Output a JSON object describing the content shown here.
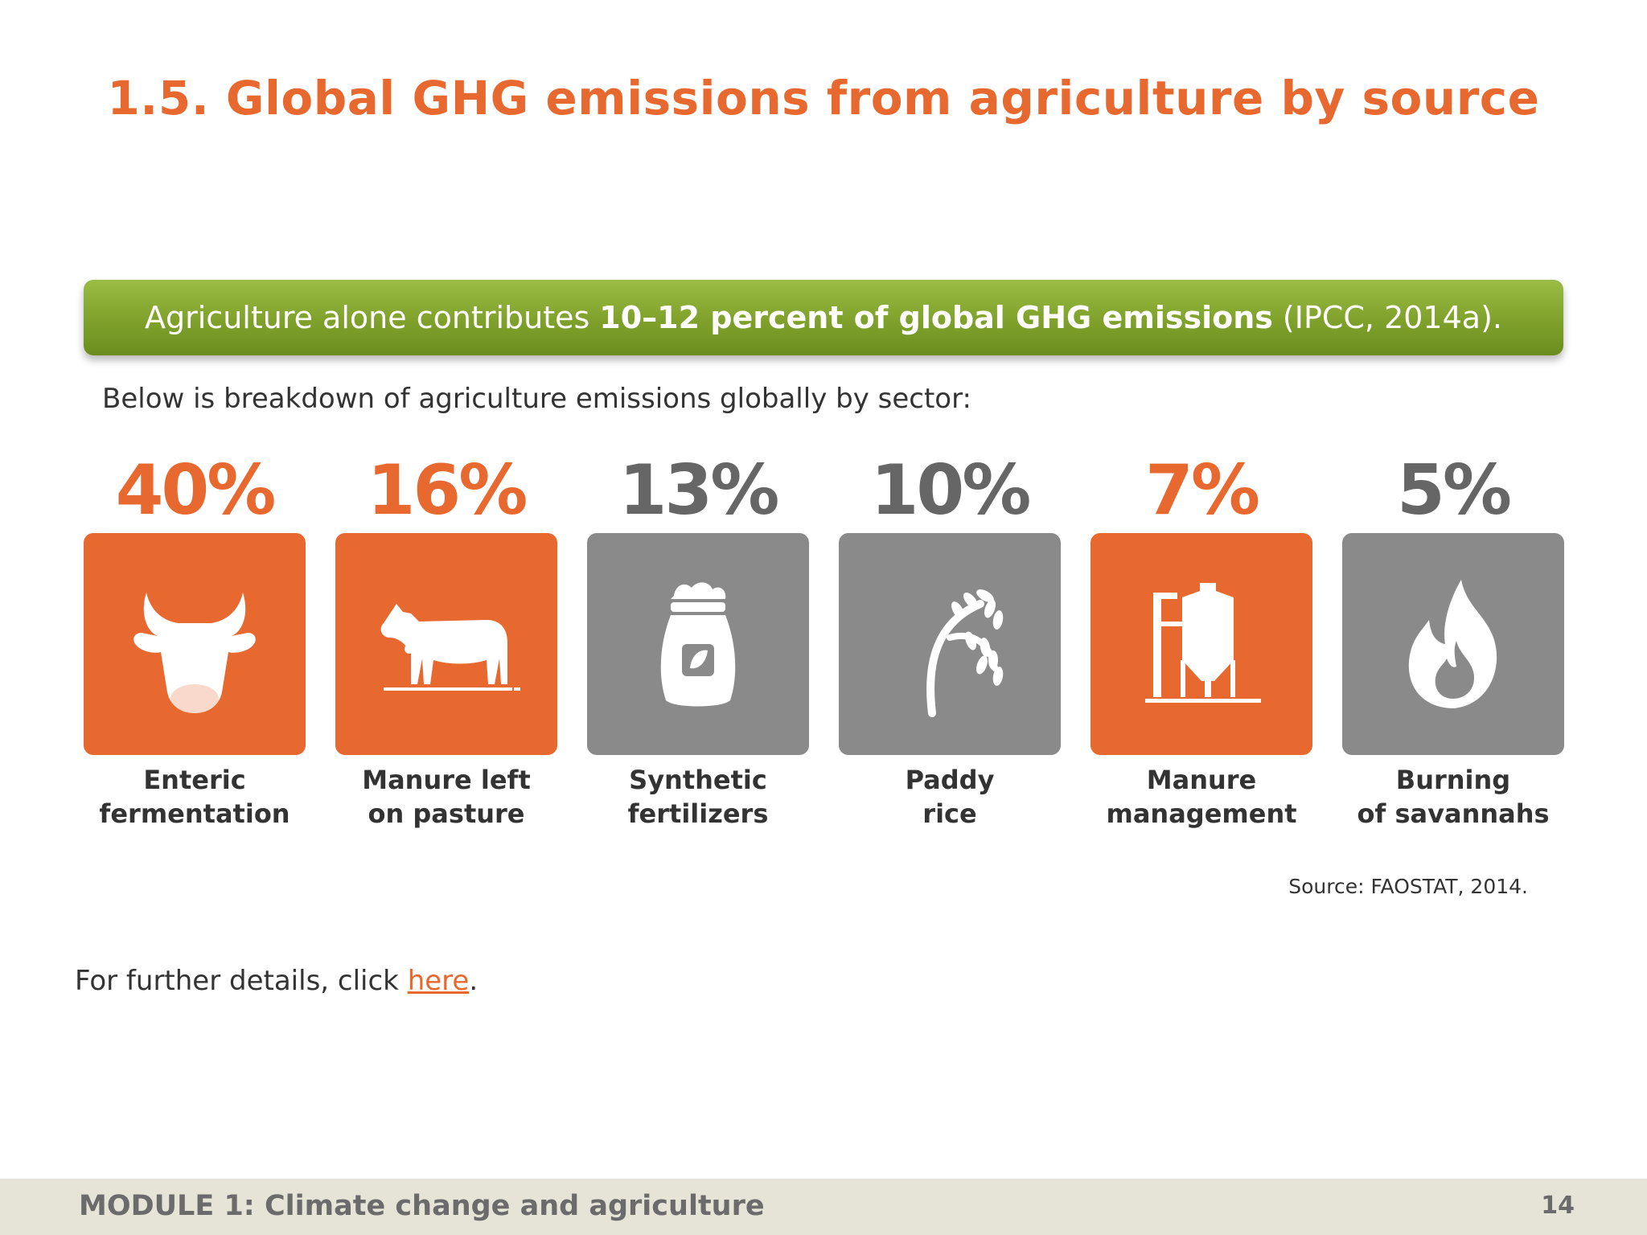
{
  "slide": {
    "title": "1.5. Global GHG emissions from agriculture by source",
    "banner": {
      "prefix": "Agriculture alone contributes",
      "highlight": "10–12 percent of global GHG emissions",
      "suffix": "(IPCC, 2014a)."
    },
    "intro": "Below is breakdown of agriculture emissions globally by sector:",
    "source": "Source: FAOSTAT, 2014.",
    "further": {
      "prefix": "For further details, click",
      "link": "here",
      "suffix": "."
    }
  },
  "colors": {
    "orange": "#e8692f",
    "gray": "#8a8a8a",
    "green": "#7fa12b",
    "text": "#333333"
  },
  "sectors": [
    {
      "percent": "40%",
      "line1": "Enteric",
      "line2": "fermentation",
      "color": "#e8692f",
      "icon": "cow-head-icon"
    },
    {
      "percent": "16%",
      "line1": "Manure left",
      "line2": "on pasture",
      "color": "#e8692f",
      "icon": "cow-icon"
    },
    {
      "percent": "13%",
      "line1": "Synthetic",
      "line2": "fertilizers",
      "color": "#8a8a8a",
      "icon": "fertilizer-bag-icon"
    },
    {
      "percent": "10%",
      "line1": "Paddy",
      "line2": "rice",
      "color": "#8a8a8a",
      "icon": "rice-plant-icon"
    },
    {
      "percent": "7%",
      "line1": "Manure",
      "line2": "management",
      "color": "#e8692f",
      "icon": "silo-icon"
    },
    {
      "percent": "5%",
      "line1": "Burning",
      "line2": "of savannahs",
      "color": "#8a8a8a",
      "icon": "flame-icon"
    }
  ],
  "footer": {
    "module": "MODULE 1: Climate change and agriculture",
    "page": "14"
  }
}
